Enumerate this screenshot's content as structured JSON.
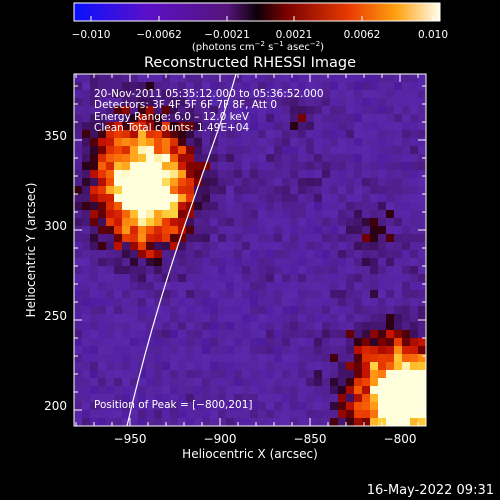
{
  "colorbar": {
    "ticks": [
      "−0.010",
      "−0.0062",
      "−0.0021",
      "0.0021",
      "0.0062",
      "0.010"
    ],
    "units_prefix": "(photons cm",
    "units_exp1": "−2",
    "units_mid": " s",
    "units_exp2": "−1",
    "units_mid2": " asec",
    "units_exp3": "−2",
    "units_suffix": ")",
    "colors": [
      "#1010f0",
      "#6010c0",
      "#5a1a8a",
      "#3a0a2a",
      "#1a0000",
      "#a00000",
      "#e04000",
      "#ff9000",
      "#ffe040",
      "#ffffff"
    ]
  },
  "plot": {
    "title": "Reconstructed RHESSI Image",
    "xlabel": "Heliocentric X (arcsec)",
    "ylabel": "Heliocentric Y (arcsec)",
    "xticks": [
      "−950",
      "−900",
      "−850",
      "−800"
    ],
    "yticks": [
      "350",
      "300",
      "250",
      "200"
    ],
    "info_lines": [
      "20-Nov-2011 05:35:12.000 to 05:36:52.000",
      "Detectors: 3F 4F 5F 6F 7F 8F, Att 0",
      "Energy Range: 6.0 – 12.0 keV",
      "Clean      Total counts: 1.49E+04"
    ],
    "peak_label": "Position of Peak = [−800,201]"
  },
  "footer": {
    "timestamp": "16-May-2022 09:31"
  }
}
